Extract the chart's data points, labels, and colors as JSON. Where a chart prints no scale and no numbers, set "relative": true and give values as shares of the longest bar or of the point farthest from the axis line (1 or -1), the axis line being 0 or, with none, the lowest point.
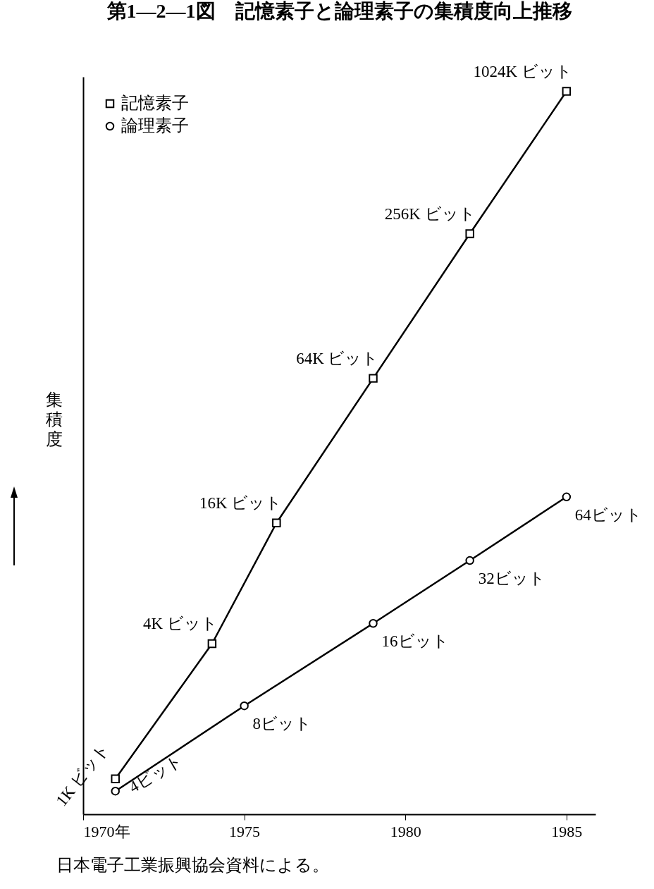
{
  "chart_data": {
    "type": "line",
    "title": "第1—2—1図　記憶素子と論理素子の集積度向上推移",
    "ylabel": "集積度",
    "relative": true,
    "xlim": [
      1970,
      1985.9
    ],
    "xticks": [
      {
        "value": 1970,
        "label": "1970年"
      },
      1975,
      1980,
      1985
    ],
    "legend": "top left",
    "x": [
      1971,
      1974,
      1976,
      1979,
      1982,
      1985
    ],
    "series": [
      {
        "name": "記憶素子",
        "color": "#000000",
        "marker": "square",
        "values": [
          0.049,
          0.236,
          0.403,
          0.603,
          0.803,
          1
        ]
      },
      {
        "name": "論理素子",
        "color": "#000000",
        "marker": "circle",
        "x": [
          1971,
          1975,
          1979,
          1982,
          1985
        ],
        "values": [
          0.032,
          0.15,
          0.264,
          0.351,
          0.439
        ]
      }
    ],
    "annotations": [
      {
        "text": "1K ビット",
        "x": 1971,
        "y": 0.049
      },
      {
        "text": "4K ビット",
        "x": 1974,
        "y": 0.236
      },
      {
        "text": "16K ビット",
        "x": 1976,
        "y": 0.403
      },
      {
        "text": "64K ビット",
        "x": 1979,
        "y": 0.603
      },
      {
        "text": "256K ビット",
        "x": 1982,
        "y": 0.803
      },
      {
        "text": "1024K ビット",
        "x": 1985,
        "y": 1
      },
      {
        "text": "4ビット",
        "x": 1971,
        "y": 0.032
      },
      {
        "text": "8ビット",
        "x": 1975,
        "y": 0.15
      },
      {
        "text": "16ビット",
        "x": 1979,
        "y": 0.264
      },
      {
        "text": "32ビット",
        "x": 1982,
        "y": 0.351
      },
      {
        "text": "64ビット",
        "x": 1985,
        "y": 0.439
      },
      "日本電子工業振興協会資料による。"
    ]
  }
}
